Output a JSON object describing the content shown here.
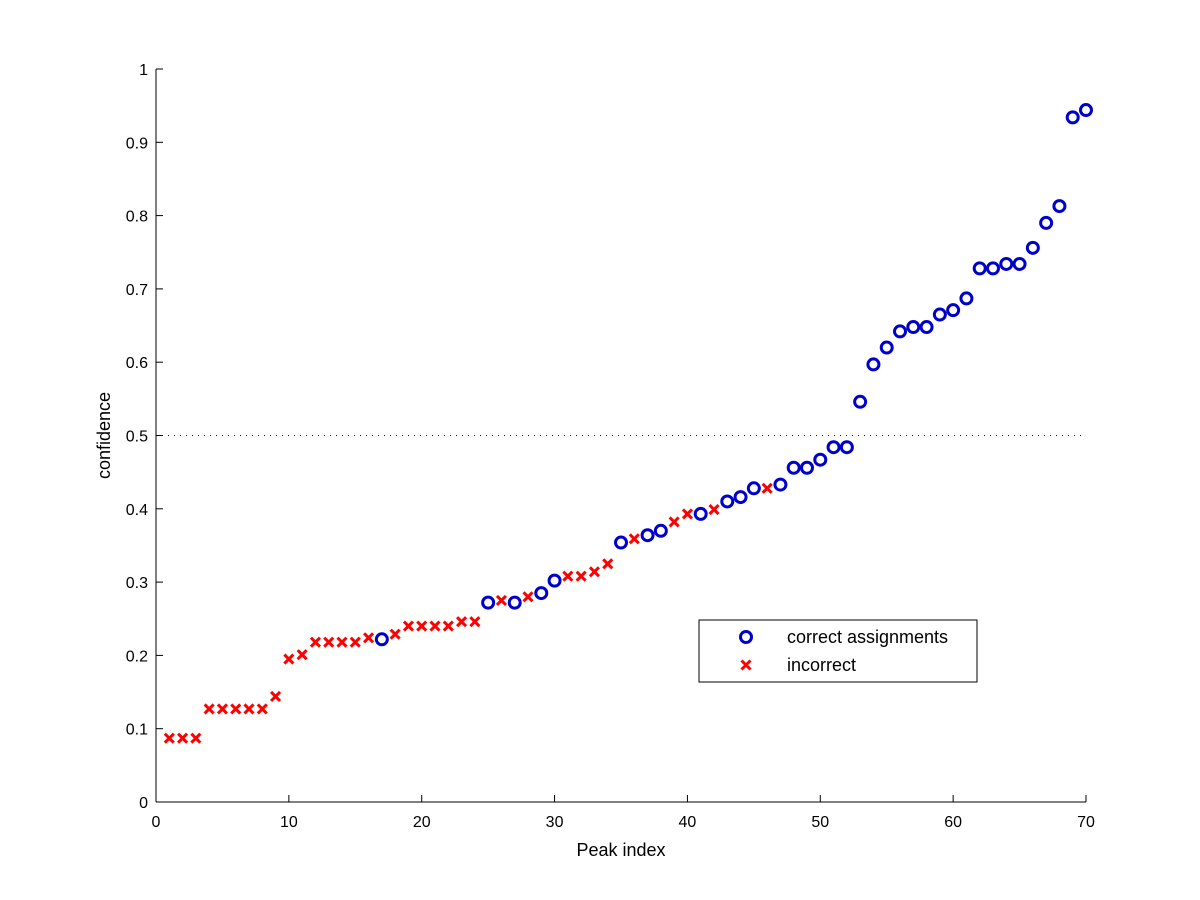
{
  "chart_data": {
    "type": "scatter",
    "xlabel": "Peak index",
    "ylabel": "confidence",
    "xlim": [
      0,
      70
    ],
    "ylim": [
      0,
      1
    ],
    "xticks": [
      "0",
      "10",
      "20",
      "30",
      "40",
      "50",
      "60",
      "70"
    ],
    "yticks": [
      "0",
      "0.1",
      "0.2",
      "0.3",
      "0.4",
      "0.5",
      "0.6",
      "0.7",
      "0.8",
      "0.9",
      "1"
    ],
    "threshold": 0.5,
    "legend_position": "lower-right",
    "series": [
      {
        "name": "correct assignments",
        "marker": "circle",
        "color": "#0000cc",
        "points": [
          [
            17,
            0.222
          ],
          [
            25,
            0.272
          ],
          [
            27,
            0.272
          ],
          [
            29,
            0.285
          ],
          [
            30,
            0.302
          ],
          [
            35,
            0.354
          ],
          [
            37,
            0.364
          ],
          [
            38,
            0.37
          ],
          [
            41,
            0.393
          ],
          [
            43,
            0.41
          ],
          [
            44,
            0.416
          ],
          [
            45,
            0.428
          ],
          [
            47,
            0.433
          ],
          [
            48,
            0.456
          ],
          [
            49,
            0.456
          ],
          [
            50,
            0.467
          ],
          [
            51,
            0.484
          ],
          [
            52,
            0.484
          ],
          [
            53,
            0.546
          ],
          [
            54,
            0.597
          ],
          [
            55,
            0.62
          ],
          [
            56,
            0.642
          ],
          [
            57,
            0.648
          ],
          [
            58,
            0.648
          ],
          [
            59,
            0.665
          ],
          [
            60,
            0.671
          ],
          [
            61,
            0.687
          ],
          [
            62,
            0.728
          ],
          [
            63,
            0.728
          ],
          [
            64,
            0.734
          ],
          [
            65,
            0.734
          ],
          [
            66,
            0.756
          ],
          [
            67,
            0.79
          ],
          [
            68,
            0.813
          ],
          [
            69,
            0.934
          ],
          [
            70,
            0.944
          ]
        ]
      },
      {
        "name": "incorrect",
        "marker": "x",
        "color": "#ff0000",
        "points": [
          [
            1,
            0.087
          ],
          [
            2,
            0.087
          ],
          [
            3,
            0.087
          ],
          [
            4,
            0.127
          ],
          [
            5,
            0.127
          ],
          [
            6,
            0.127
          ],
          [
            7,
            0.127
          ],
          [
            8,
            0.127
          ],
          [
            9,
            0.144
          ],
          [
            10,
            0.195
          ],
          [
            11,
            0.201
          ],
          [
            12,
            0.218
          ],
          [
            13,
            0.218
          ],
          [
            14,
            0.218
          ],
          [
            15,
            0.218
          ],
          [
            16,
            0.224
          ],
          [
            18,
            0.229
          ],
          [
            19,
            0.24
          ],
          [
            20,
            0.24
          ],
          [
            21,
            0.24
          ],
          [
            22,
            0.24
          ],
          [
            23,
            0.246
          ],
          [
            24,
            0.246
          ],
          [
            26,
            0.275
          ],
          [
            28,
            0.28
          ],
          [
            31,
            0.308
          ],
          [
            32,
            0.308
          ],
          [
            33,
            0.314
          ],
          [
            34,
            0.325
          ],
          [
            36,
            0.359
          ],
          [
            39,
            0.382
          ],
          [
            40,
            0.393
          ],
          [
            42,
            0.399
          ],
          [
            46,
            0.428
          ]
        ]
      }
    ]
  }
}
